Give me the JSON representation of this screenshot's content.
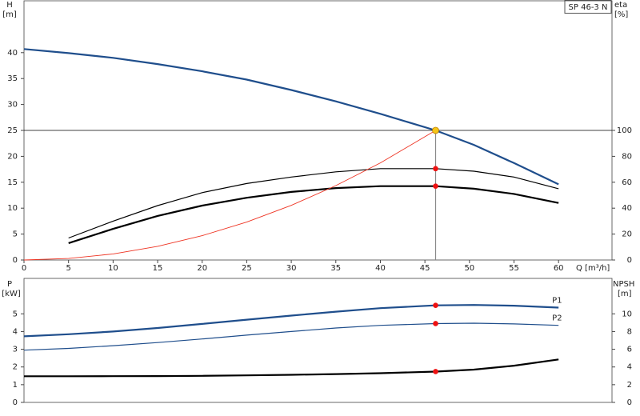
{
  "chart_data": [
    {
      "type": "line",
      "legend": "SP 46-3 N",
      "y_label": "H",
      "y_unit": "[m]",
      "y2_label": "eta",
      "y2_unit": "[%]",
      "x_label": "Q [m³/h]",
      "x": [
        0,
        5,
        10,
        15,
        20,
        25,
        30,
        35,
        40,
        46.2,
        50.5,
        55,
        60
      ],
      "xlim": [
        0,
        66
      ],
      "xticks": [
        0,
        5,
        10,
        15,
        20,
        25,
        30,
        35,
        40,
        45,
        50,
        55,
        60
      ],
      "ylim": [
        0,
        50
      ],
      "yticks": [
        0,
        5,
        10,
        15,
        20,
        25,
        30,
        35,
        40
      ],
      "y2lim": [
        0,
        200
      ],
      "y2ticks": [
        0,
        20,
        40,
        60,
        80,
        100
      ],
      "grid": false,
      "duty_point": {
        "q": 46.2,
        "h": 25
      },
      "series": [
        {
          "color": "#1f4e8c",
          "width": 2.2,
          "values": [
            40.7,
            39.9,
            39.0,
            37.8,
            36.4,
            34.8,
            32.8,
            30.6,
            28.2,
            25,
            22.2,
            18.7,
            14.6
          ]
        },
        {
          "color": "#000000",
          "width": 1.2,
          "axis": "y2",
          "values": [
            null,
            17,
            30,
            42,
            52,
            59,
            64,
            68,
            70.5,
            70.5,
            68.5,
            64,
            55
          ]
        },
        {
          "color": "#000000",
          "width": 2.2,
          "axis": "y2",
          "values": [
            null,
            13,
            24,
            34,
            42,
            48,
            52.5,
            55.5,
            57,
            57,
            55,
            51,
            44
          ]
        },
        {
          "color": "#ee3322",
          "width": 0.9,
          "values": [
            0,
            0.29,
            1.17,
            2.64,
            4.69,
            7.32,
            10.54,
            14.35,
            18.74,
            25,
            null,
            null,
            null
          ]
        }
      ]
    },
    {
      "type": "line",
      "y_label": "P",
      "y_unit": "[kW]",
      "y2_label": "NPSH",
      "y2_unit": "[m]",
      "x": [
        0,
        5,
        10,
        15,
        20,
        25,
        30,
        35,
        40,
        46.2,
        50.5,
        55,
        60
      ],
      "xlim": [
        0,
        66
      ],
      "ylim": [
        0,
        7
      ],
      "yticks": [
        0,
        1,
        2,
        3,
        4,
        5
      ],
      "y2lim": [
        0,
        14
      ],
      "y2ticks": [
        0,
        2,
        4,
        6,
        8,
        10
      ],
      "grid": false,
      "duty_point": {
        "q": 46.2
      },
      "series": [
        {
          "name": "P1",
          "color": "#1f4e8c",
          "width": 2.2,
          "values": [
            3.73,
            3.85,
            4.0,
            4.2,
            4.43,
            4.67,
            4.9,
            5.12,
            5.32,
            5.48,
            5.5,
            5.46,
            5.35
          ]
        },
        {
          "name": "P2",
          "color": "#1f4e8c",
          "width": 1.2,
          "values": [
            2.95,
            3.05,
            3.2,
            3.38,
            3.58,
            3.8,
            4.0,
            4.2,
            4.35,
            4.45,
            4.47,
            4.43,
            4.35
          ]
        },
        {
          "color": "#000000",
          "width": 2.2,
          "axis": "y2",
          "values": [
            2.95,
            2.95,
            2.96,
            2.97,
            3.0,
            3.05,
            3.12,
            3.2,
            3.3,
            3.48,
            3.7,
            4.15,
            4.85
          ]
        }
      ]
    }
  ]
}
